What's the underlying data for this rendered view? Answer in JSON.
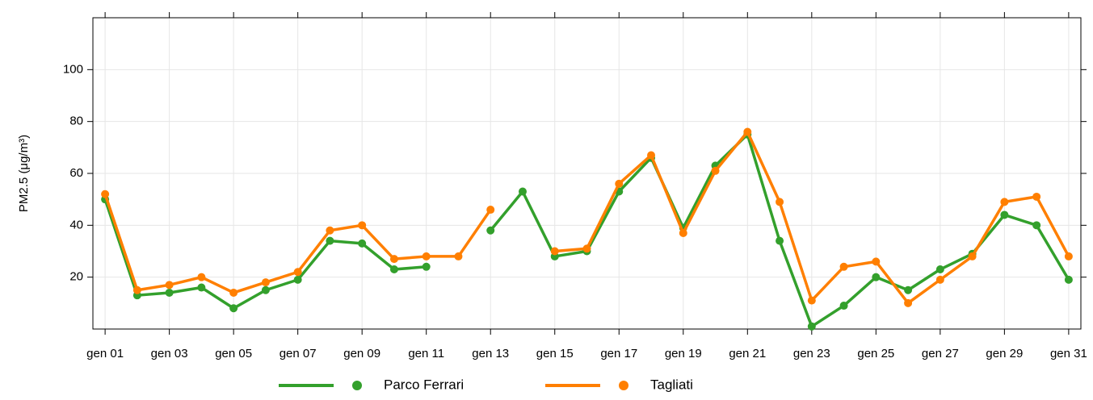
{
  "chart_data": {
    "type": "line",
    "y_label": "PM2.5 (μg/m³)",
    "categories": [
      "gen 01",
      null,
      "gen 03",
      null,
      "gen 05",
      null,
      "gen 07",
      null,
      "gen 09",
      null,
      "gen 11",
      null,
      "gen 13",
      null,
      "gen 15",
      null,
      "gen 17",
      null,
      "gen 19",
      null,
      "gen 21",
      null,
      "gen 23",
      null,
      "gen 25",
      null,
      "gen 27",
      null,
      "gen 29",
      null,
      "gen 31"
    ],
    "series": [
      {
        "name": "Parco Ferrari",
        "color": "#33a02c",
        "values": [
          50,
          13,
          14,
          16,
          8,
          15,
          19,
          34,
          33,
          23,
          24,
          null,
          38,
          53,
          28,
          30,
          53,
          66,
          39,
          63,
          75,
          34,
          1,
          9,
          20,
          15,
          23,
          29,
          44,
          40,
          19
        ]
      },
      {
        "name": "Tagliati",
        "color": "#ff7f00",
        "values": [
          52,
          15,
          17,
          20,
          14,
          18,
          22,
          38,
          40,
          27,
          28,
          28,
          46,
          null,
          30,
          31,
          56,
          67,
          37,
          61,
          76,
          49,
          11,
          24,
          26,
          10,
          19,
          28,
          49,
          51,
          28
        ]
      }
    ],
    "ylim": [
      0,
      120
    ],
    "yticks": [
      20,
      40,
      60,
      80,
      100
    ],
    "grid": true,
    "legend": "bottom"
  }
}
